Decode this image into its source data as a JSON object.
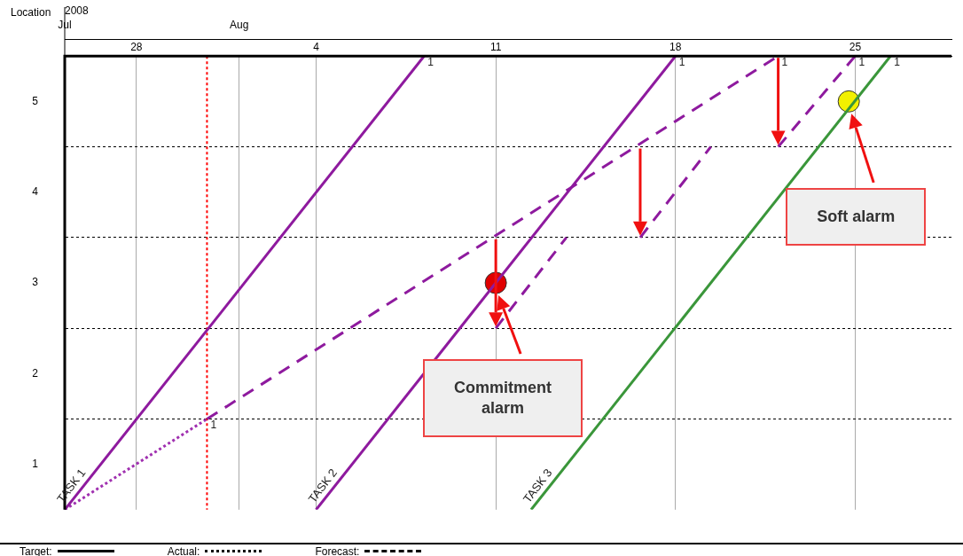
{
  "chart_data": {
    "type": "line",
    "ylabel": "Location",
    "x2label": "2008",
    "xlim": [
      "2008-07-25T05:00",
      "2008-08-28T18:00"
    ],
    "xticks": [
      {
        "value": "2008-07-28",
        "label": "28"
      },
      {
        "value": "2008-08-01",
        "label": null
      },
      {
        "value": "2008-08-04",
        "label": "4"
      },
      {
        "value": "2008-08-11",
        "label": "11"
      },
      {
        "value": "2008-08-18",
        "label": "18"
      },
      {
        "value": "2008-08-25",
        "label": "25"
      }
    ],
    "x2lim": [
      "2008-07-25T05:00",
      "2008-08-28T18:00"
    ],
    "x2ticks": [
      {
        "value": "2008-07-25T05:00",
        "label": "Jul"
      },
      {
        "value": "2008-08-01",
        "label": "Aug"
      }
    ],
    "ylim": [
      0,
      5
    ],
    "yticks": [
      {
        "value": 0.5,
        "label": "1"
      },
      {
        "value": 1,
        "label": null
      },
      {
        "value": 1.5,
        "label": "2"
      },
      {
        "value": 2,
        "label": null
      },
      {
        "value": 2.5,
        "label": "3"
      },
      {
        "value": 3,
        "label": null
      },
      {
        "value": 3.5,
        "label": "4"
      },
      {
        "value": 4,
        "label": null
      },
      {
        "value": 4.5,
        "label": "5"
      }
    ],
    "grid": true,
    "marker": "none",
    "series": [
      {
        "color": "#8e1a9e",
        "line_style": "solid",
        "x": [
          "2008-07-25T05:00",
          "2008-08-08T05:00"
        ],
        "values": [
          0,
          5
        ]
      },
      {
        "color": "#8e1a9e",
        "line_style": "solid",
        "x": [
          "2008-08-04",
          "2008-08-18"
        ],
        "values": [
          0,
          5
        ]
      },
      {
        "color": "#3a963a",
        "line_style": "solid",
        "x": [
          "2008-08-12T09:00",
          "2008-08-26T09:00"
        ],
        "values": [
          0,
          5
        ]
      },
      {
        "color": "#a030b0",
        "line_style": "dotted",
        "x": [
          "2008-07-25T05:00",
          "2008-07-30T18:00"
        ],
        "values": [
          0,
          1
        ]
      },
      {
        "color": "#8e1a9e",
        "line_style": "dashed",
        "x": [
          "2008-07-30T18:00",
          "2008-08-22"
        ],
        "values": [
          1,
          5
        ]
      },
      {
        "color": "#8e1a9e",
        "line_style": "dashed",
        "x": [
          "2008-08-11",
          "2008-08-13T18:00",
          null,
          "2008-08-16T15:00",
          "2008-08-19T09:00",
          null,
          "2008-08-22",
          "2008-08-25"
        ],
        "values": [
          2,
          3,
          null,
          3,
          4,
          null,
          4,
          5
        ]
      },
      {
        "type": "scatter",
        "color": "#e00000",
        "marker": "circle",
        "x": [
          "2008-08-11"
        ],
        "values": [
          2.5
        ]
      },
      {
        "type": "scatter",
        "color": "#f2f000",
        "marker": "circle",
        "x": [
          "2008-08-24T18:00"
        ],
        "values": [
          4.5
        ]
      }
    ],
    "ref_lines": [
      {
        "axis": "x",
        "value": "2008-07-30T18:00",
        "color": "#ff0000",
        "line_style": "dotted"
      }
    ],
    "annotations": [
      {
        "text": "1",
        "x": "2008-08-08T05:00",
        "y": 5
      },
      {
        "text": "1",
        "x": "2008-08-18",
        "y": 5
      },
      {
        "text": "1",
        "x": "2008-08-22",
        "y": 5
      },
      {
        "text": "1",
        "x": "2008-08-25",
        "y": 5
      },
      {
        "text": "1",
        "x": "2008-08-26T09:00",
        "y": 5
      },
      {
        "text": "1",
        "x": "2008-07-30T18:00",
        "y": 1
      },
      {
        "text": "TASK 1",
        "x": "2008-07-25T05:00",
        "y": 0
      },
      {
        "text": "TASK 2",
        "x": "2008-08-04",
        "y": 0
      },
      {
        "text": "TASK 3",
        "x": "2008-08-12T09:00",
        "y": 0
      },
      "Commitment alarm",
      "Soft alarm",
      "Target:",
      "Actual:",
      "Forecast:"
    ]
  }
}
